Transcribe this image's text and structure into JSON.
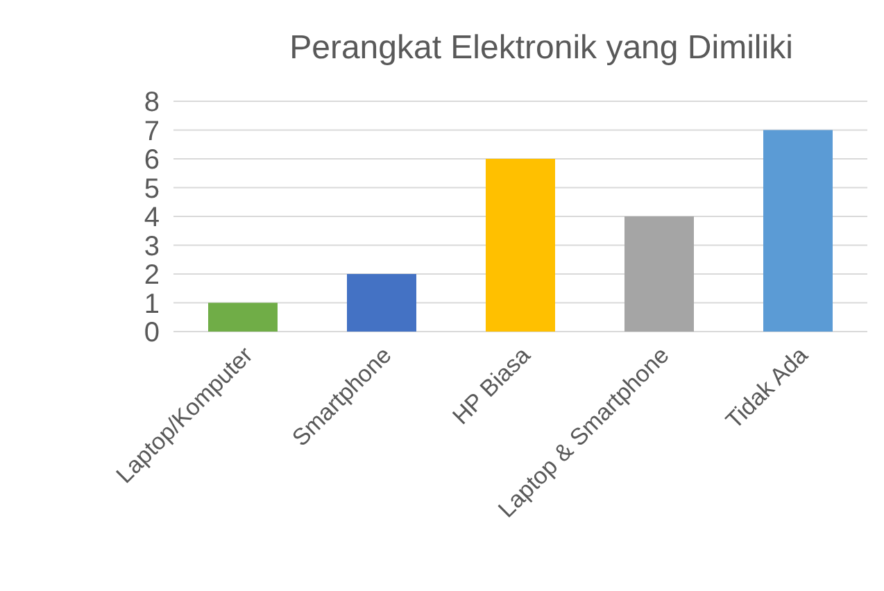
{
  "chart_data": {
    "type": "bar",
    "title": "Perangkat Elektronik yang Dimiliki",
    "categories": [
      "Laptop/Komputer",
      "Smartphone",
      "HP Biasa",
      "Laptop & Smartphone",
      "Tidak Ada"
    ],
    "values": [
      1,
      2,
      6,
      4,
      7
    ],
    "colors": [
      "#70ad47",
      "#4472c4",
      "#ffc000",
      "#a5a5a5",
      "#5b9bd5"
    ],
    "ylim": [
      0,
      8
    ],
    "yticks": [
      0,
      1,
      2,
      3,
      4,
      5,
      6,
      7,
      8
    ],
    "grid": "y"
  }
}
